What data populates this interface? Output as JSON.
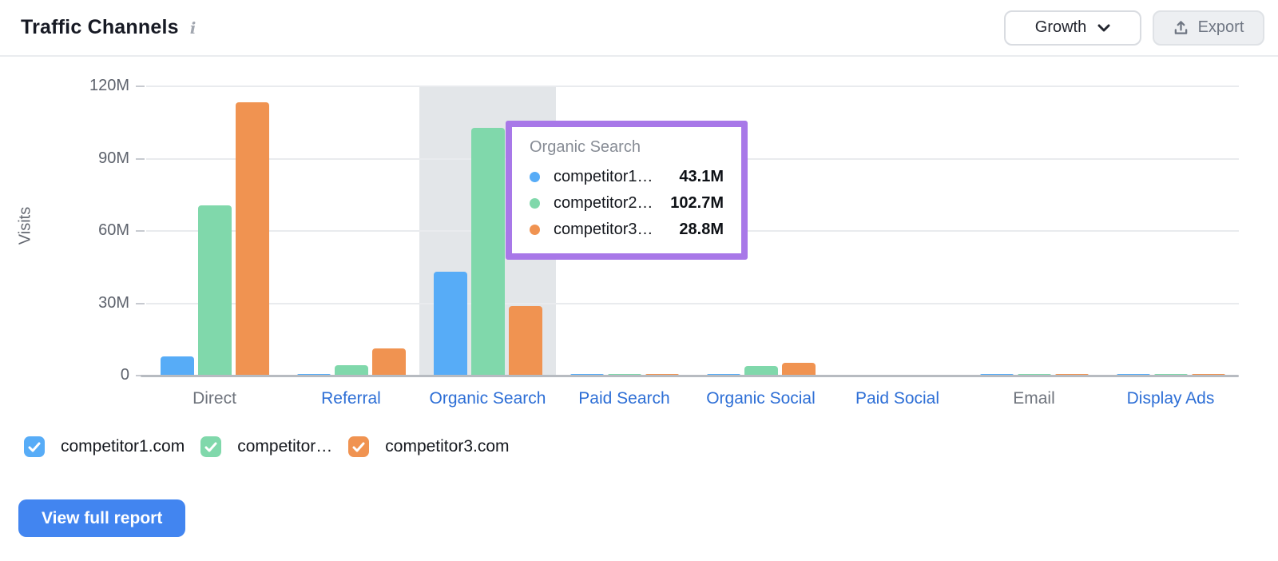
{
  "header": {
    "title": "Traffic Channels",
    "info_icon": "i",
    "growth_dropdown": {
      "label": "Growth"
    },
    "export_button": {
      "label": "Export"
    }
  },
  "chart_data": {
    "type": "bar",
    "title": "Traffic Channels",
    "ylabel": "Visits",
    "unit": "M visits",
    "ylim": [
      0,
      120
    ],
    "ytick_labels": [
      "120M",
      "90M",
      "60M",
      "30M",
      "0"
    ],
    "grid": true,
    "legend_position": "bottom",
    "categories": [
      "Direct",
      "Referral",
      "Organic Search",
      "Paid Search",
      "Organic Social",
      "Paid Social",
      "Email",
      "Display Ads"
    ],
    "category_is_link": [
      false,
      true,
      true,
      true,
      true,
      true,
      false,
      true
    ],
    "highlighted_category": "Organic Search",
    "series": [
      {
        "name": "competitor1.com",
        "color": "#57acf7",
        "values": [
          8.0,
          0.7,
          43.1,
          0.8,
          0.3,
          0,
          0.4,
          0.4
        ]
      },
      {
        "name": "competitor2.com",
        "color": "#80d8ab",
        "values": [
          70.6,
          4.3,
          102.7,
          0.3,
          4.0,
          0,
          0.3,
          0.3
        ]
      },
      {
        "name": "competitor3.com",
        "color": "#f09351",
        "values": [
          113.4,
          11.2,
          28.8,
          0.1,
          5.3,
          0,
          0.3,
          0.1
        ]
      }
    ]
  },
  "tooltip": {
    "title": "Organic Search",
    "border_color": "#a878e8",
    "rows": [
      {
        "label": "competitor1…",
        "value": "43.1M",
        "color": "#57acf7"
      },
      {
        "label": "competitor2…",
        "value": "102.7M",
        "color": "#80d8ab"
      },
      {
        "label": "competitor3…",
        "value": "28.8M",
        "color": "#f09351"
      }
    ]
  },
  "legend": {
    "items": [
      {
        "label": "competitor1.com",
        "color": "#57acf7",
        "checked": true
      },
      {
        "label": "competitor…",
        "color": "#80d8ab",
        "checked": true
      },
      {
        "label": "competitor3.com",
        "color": "#f09351",
        "checked": true
      }
    ]
  },
  "footer": {
    "view_report_label": "View full report"
  }
}
